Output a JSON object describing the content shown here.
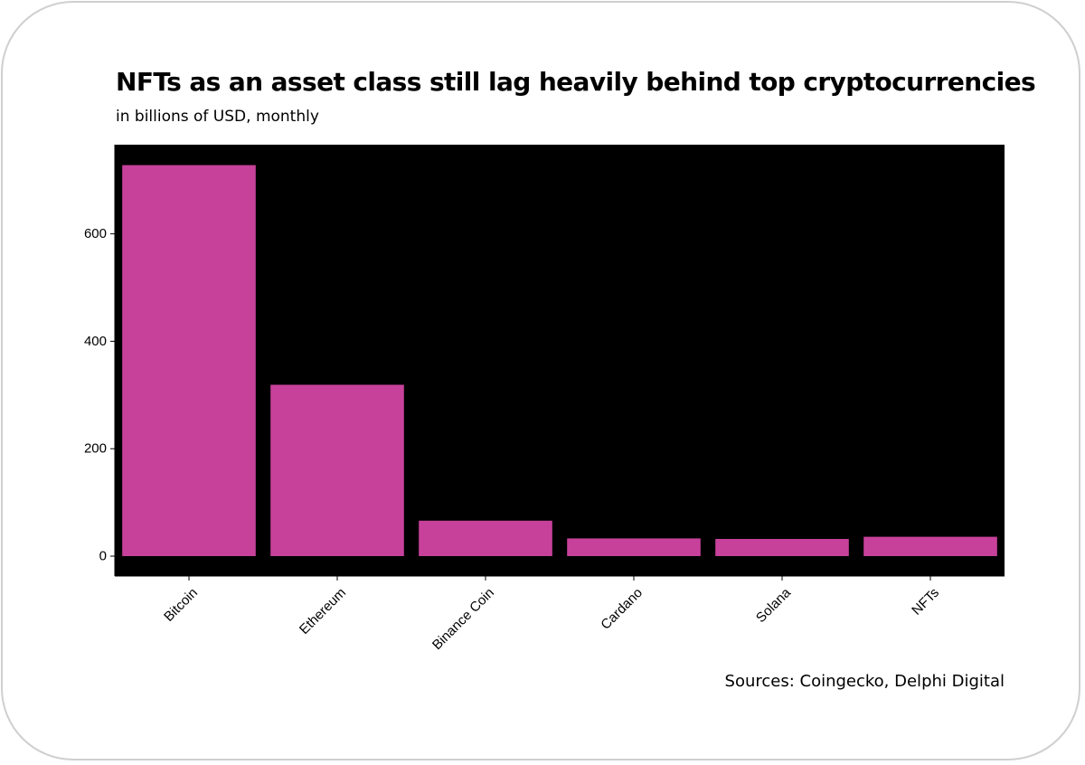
{
  "colors": {
    "bar": "#c7419a",
    "panel": "#000000",
    "axis": "#000000",
    "card_border": "#cfcfcf"
  },
  "chart_data": {
    "type": "bar",
    "title": "NFTs as an asset class still lag heavily behind top cryptocurrencies",
    "subtitle": "in billions of USD, monthly",
    "source": "Sources: Coingecko, Delphi Digital",
    "categories": [
      "Bitcoin",
      "Ethereum",
      "Binance Coin",
      "Cardano",
      "Solana",
      "NFTs"
    ],
    "values": [
      728,
      319,
      66,
      33,
      32,
      36
    ],
    "ylim": [
      -37,
      766
    ],
    "yticks": [
      0,
      200,
      400,
      600
    ],
    "xlabel": "",
    "ylabel": "",
    "grid": false,
    "x_tick_rotation_deg": -45
  }
}
